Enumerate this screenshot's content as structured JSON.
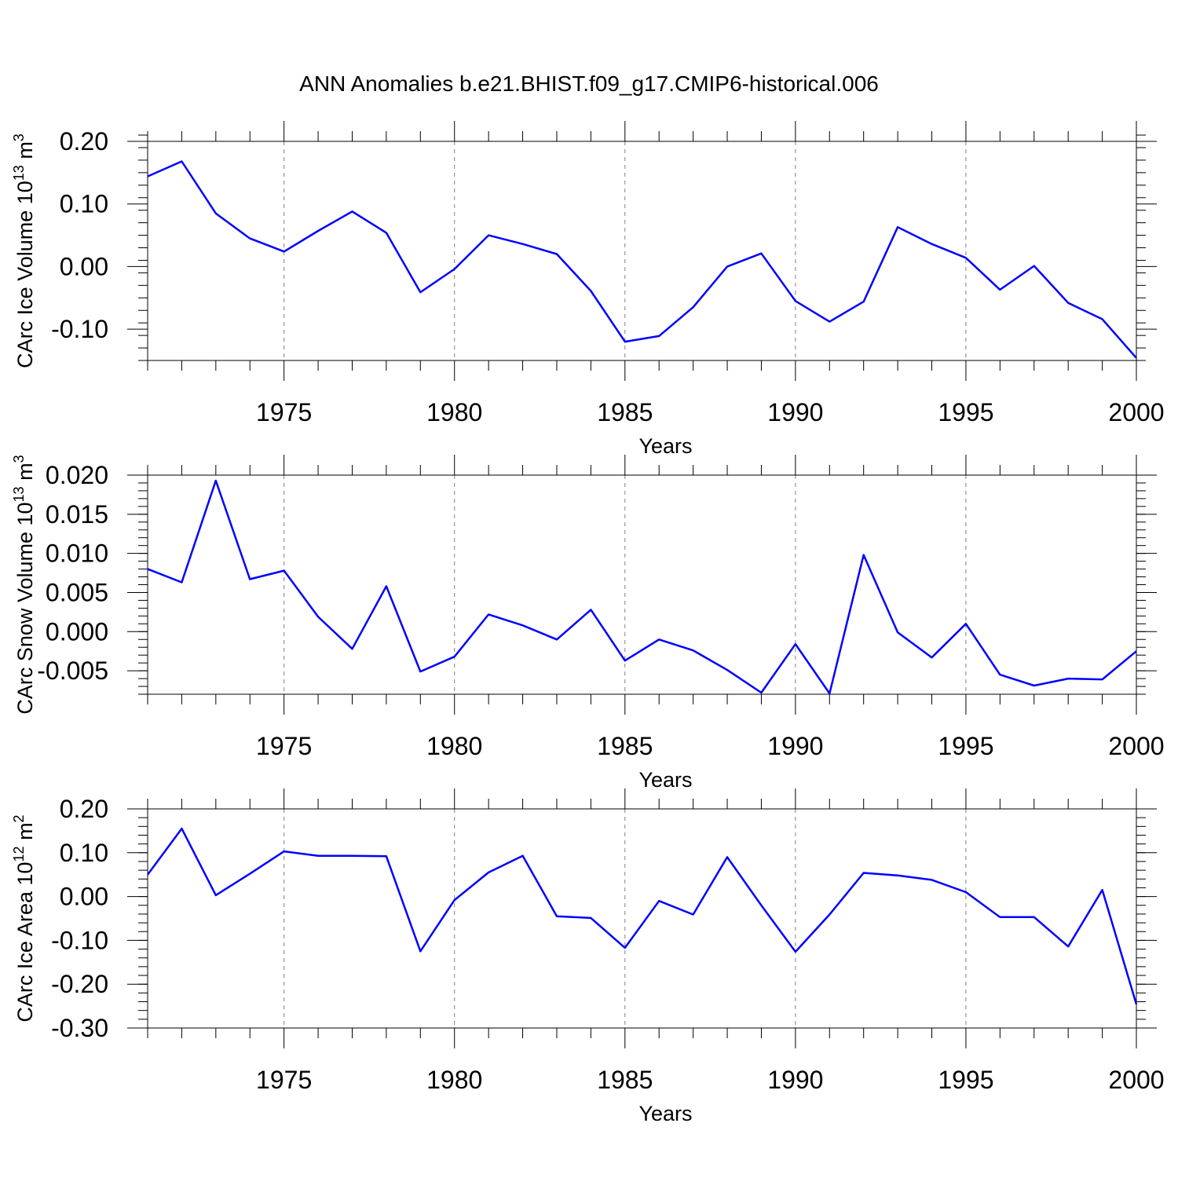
{
  "title": "ANN Anomalies b.e21.BHIST.f09_g17.CMIP6-historical.006",
  "colors": {
    "line": "#0000ff",
    "axis": "#000000",
    "grid": "#808080"
  },
  "chart_data": [
    {
      "type": "line",
      "ylabel": "CArc Ice Volume 10",
      "ylabel_exp": "13",
      "ylabel_unit": " m",
      "ylabel_unit_exp": "3",
      "xlabel": "Years",
      "xlim": [
        1971,
        2000
      ],
      "ylim": [
        -0.15,
        0.2
      ],
      "xticks": [
        1975,
        1980,
        1985,
        1990,
        1995,
        2000
      ],
      "xtick_labels": [
        "1975",
        "1980",
        "1985",
        "1990",
        "1995",
        "2000"
      ],
      "yticks": [
        -0.1,
        0.0,
        0.1,
        0.2
      ],
      "ytick_labels": [
        "-0.10",
        "0.00",
        "0.10",
        "0.20"
      ],
      "yminor_step": 0.02,
      "grid": "vertical dashed at major x ticks",
      "series": [
        {
          "name": "CArc Ice Volume",
          "x": [
            1971,
            1972,
            1973,
            1974,
            1975,
            1976,
            1977,
            1978,
            1979,
            1980,
            1981,
            1982,
            1983,
            1984,
            1985,
            1986,
            1987,
            1988,
            1989,
            1990,
            1991,
            1992,
            1993,
            1994,
            1995,
            1996,
            1997,
            1998,
            1999,
            2000
          ],
          "values": [
            0.144,
            0.168,
            0.085,
            0.045,
            0.024,
            0.057,
            0.088,
            0.054,
            -0.041,
            -0.004,
            0.05,
            0.036,
            0.02,
            -0.039,
            -0.12,
            -0.111,
            -0.065,
            0.0,
            0.021,
            -0.055,
            -0.088,
            -0.056,
            0.063,
            0.036,
            0.014,
            -0.037,
            0.001,
            -0.058,
            -0.084,
            -0.146
          ]
        }
      ]
    },
    {
      "type": "line",
      "ylabel": "CArc Snow Volume 10",
      "ylabel_exp": "13",
      "ylabel_unit": " m",
      "ylabel_unit_exp": "3",
      "xlabel": "Years",
      "xlim": [
        1971,
        2000
      ],
      "ylim": [
        -0.008,
        0.02
      ],
      "xticks": [
        1975,
        1980,
        1985,
        1990,
        1995,
        2000
      ],
      "xtick_labels": [
        "1975",
        "1980",
        "1985",
        "1990",
        "1995",
        "2000"
      ],
      "yticks": [
        -0.005,
        0.0,
        0.005,
        0.01,
        0.015,
        0.02
      ],
      "ytick_labels": [
        "-0.005",
        "0.000",
        "0.005",
        "0.010",
        "0.015",
        "0.020"
      ],
      "yminor_step": 0.001,
      "grid": "vertical dashed at major x ticks",
      "series": [
        {
          "name": "CArc Snow Volume",
          "x": [
            1971,
            1972,
            1973,
            1974,
            1975,
            1976,
            1977,
            1978,
            1979,
            1980,
            1981,
            1982,
            1983,
            1984,
            1985,
            1986,
            1987,
            1988,
            1989,
            1990,
            1991,
            1992,
            1993,
            1994,
            1995,
            1996,
            1997,
            1998,
            1999,
            2000
          ],
          "values": [
            0.008,
            0.0063,
            0.0193,
            0.0067,
            0.0078,
            0.0019,
            -0.0022,
            0.0058,
            -0.0051,
            -0.0032,
            0.0022,
            0.0008,
            -0.001,
            0.0028,
            -0.0037,
            -0.001,
            -0.0024,
            -0.0049,
            -0.0078,
            -0.0016,
            -0.0079,
            0.0098,
            -0.0001,
            -0.0033,
            0.001,
            -0.0055,
            -0.0069,
            -0.006,
            -0.0061,
            -0.0025
          ]
        }
      ]
    },
    {
      "type": "line",
      "ylabel": "CArc Ice Area 10",
      "ylabel_exp": "12",
      "ylabel_unit": " m",
      "ylabel_unit_exp": "2",
      "xlabel": "Years",
      "xlim": [
        1971,
        2000
      ],
      "ylim": [
        -0.3,
        0.2
      ],
      "xticks": [
        1975,
        1980,
        1985,
        1990,
        1995,
        2000
      ],
      "xtick_labels": [
        "1975",
        "1980",
        "1985",
        "1990",
        "1995",
        "2000"
      ],
      "yticks": [
        -0.3,
        -0.2,
        -0.1,
        0.0,
        0.1,
        0.2
      ],
      "ytick_labels": [
        "-0.30",
        "-0.20",
        "-0.10",
        "0.00",
        "0.10",
        "0.20"
      ],
      "yminor_step": 0.02,
      "grid": "vertical dashed at major x ticks",
      "series": [
        {
          "name": "CArc Ice Area",
          "x": [
            1971,
            1972,
            1973,
            1974,
            1975,
            1976,
            1977,
            1978,
            1979,
            1980,
            1981,
            1982,
            1983,
            1984,
            1985,
            1986,
            1987,
            1988,
            1989,
            1990,
            1991,
            1992,
            1993,
            1994,
            1995,
            1996,
            1997,
            1998,
            1999,
            2000
          ],
          "values": [
            0.05,
            0.155,
            0.003,
            0.052,
            0.103,
            0.093,
            0.093,
            0.092,
            -0.125,
            -0.008,
            0.055,
            0.093,
            -0.045,
            -0.049,
            -0.117,
            -0.01,
            -0.041,
            0.09,
            -0.02,
            -0.126,
            -0.041,
            0.054,
            0.048,
            0.038,
            0.01,
            -0.047,
            -0.047,
            -0.114,
            0.015,
            -0.246
          ]
        }
      ]
    }
  ]
}
